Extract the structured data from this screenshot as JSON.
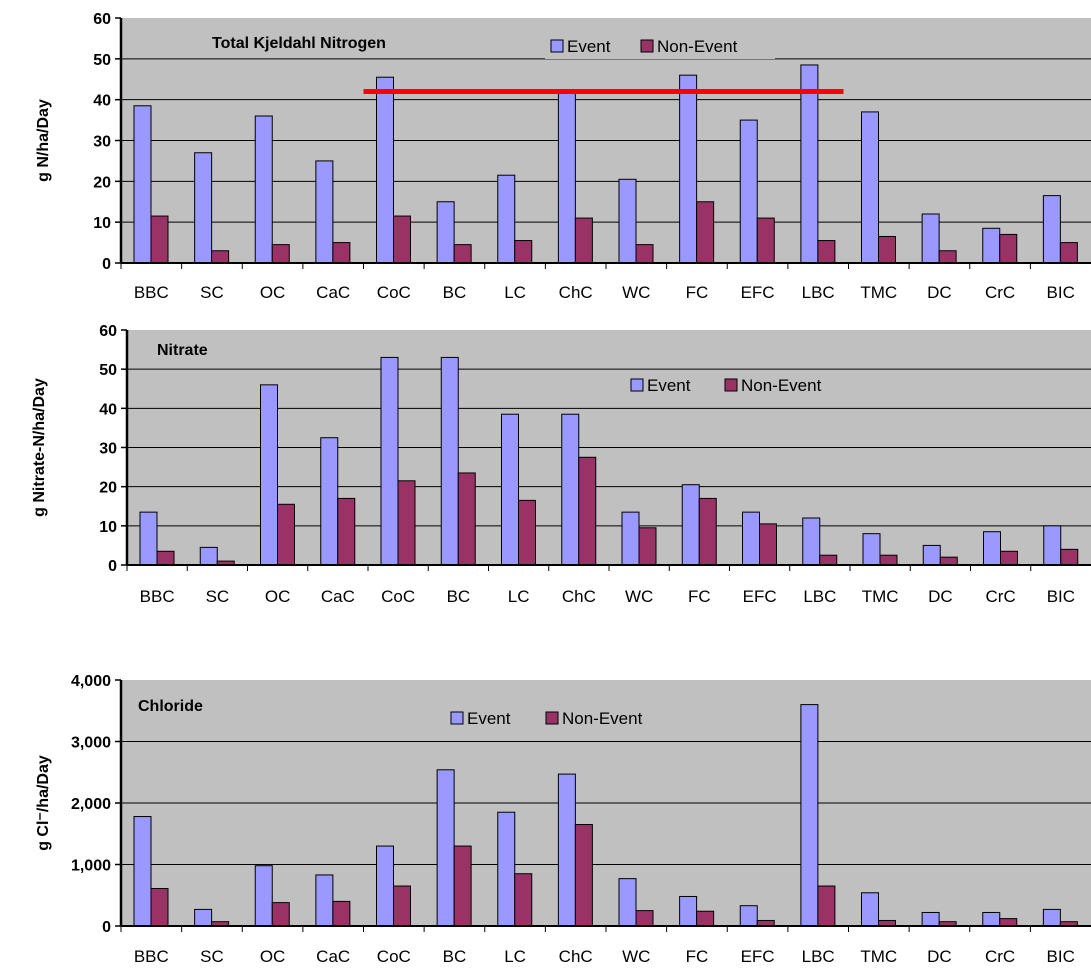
{
  "colors": {
    "plot_bg": "#c0c0c0",
    "event": "#9999ff",
    "non_event": "#993366",
    "grid": "#000000",
    "highlight_line": "#ff0000"
  },
  "legend": {
    "event": "Event",
    "non_event": "Non-Event"
  },
  "chart_data": [
    {
      "type": "bar",
      "title": "Total Kjeldahl Nitrogen",
      "ylabel": "g N/ha/Day",
      "xlabel": "",
      "ylim": [
        0,
        60
      ],
      "yticks": [
        0,
        10,
        20,
        30,
        40,
        50,
        60
      ],
      "ytick_labels": [
        "0",
        "10",
        "20",
        "30",
        "40",
        "50",
        "60"
      ],
      "grid": true,
      "legend_position": "top-center",
      "categories": [
        "BBC",
        "SC",
        "OC",
        "CaC",
        "CoC",
        "BC",
        "LC",
        "ChC",
        "WC",
        "FC",
        "EFC",
        "LBC",
        "TMC",
        "DC",
        "CrC",
        "BIC"
      ],
      "series": [
        {
          "name": "Event",
          "values": [
            38.5,
            27,
            36,
            25,
            45.5,
            15,
            21.5,
            42,
            20.5,
            46,
            35,
            48.5,
            37,
            12,
            8.5,
            16.5
          ]
        },
        {
          "name": "Non-Event",
          "values": [
            11.5,
            3,
            4.5,
            5,
            11.5,
            4.5,
            5.5,
            11,
            4.5,
            15,
            11,
            5.5,
            6.5,
            3,
            7,
            5
          ]
        }
      ],
      "reference_line": {
        "value": 42,
        "from_category": "CoC",
        "to_category": "LBC"
      }
    },
    {
      "type": "bar",
      "title": "Nitrate",
      "ylabel": "g Nitrate-N/ha/Day",
      "xlabel": "",
      "ylim": [
        0,
        60
      ],
      "yticks": [
        0,
        10,
        20,
        30,
        40,
        50,
        60
      ],
      "ytick_labels": [
        "0",
        "10",
        "20",
        "30",
        "40",
        "50",
        "60"
      ],
      "grid": true,
      "legend_position": "top-center",
      "categories": [
        "BBC",
        "SC",
        "OC",
        "CaC",
        "CoC",
        "BC",
        "LC",
        "ChC",
        "WC",
        "FC",
        "EFC",
        "LBC",
        "TMC",
        "DC",
        "CrC",
        "BIC"
      ],
      "series": [
        {
          "name": "Event",
          "values": [
            13.5,
            4.5,
            46,
            32.5,
            53,
            53,
            38.5,
            38.5,
            13.5,
            20.5,
            13.5,
            12,
            8,
            5,
            8.5,
            10
          ]
        },
        {
          "name": "Non-Event",
          "values": [
            3.5,
            1,
            15.5,
            17,
            21.5,
            23.5,
            16.5,
            27.5,
            9.5,
            17,
            10.5,
            2.5,
            2.5,
            2,
            3.5,
            4
          ]
        }
      ]
    },
    {
      "type": "bar",
      "title": "Chloride",
      "ylabel": "g Cl⁻/ha/Day",
      "xlabel": "",
      "ylim": [
        0,
        4000
      ],
      "yticks": [
        0,
        1000,
        2000,
        3000,
        4000
      ],
      "ytick_labels": [
        "0",
        "1,000",
        "2,000",
        "3,000",
        "4,000"
      ],
      "grid": true,
      "legend_position": "top-center",
      "categories": [
        "BBC",
        "SC",
        "OC",
        "CaC",
        "CoC",
        "BC",
        "LC",
        "ChC",
        "WC",
        "FC",
        "EFC",
        "LBC",
        "TMC",
        "DC",
        "CrC",
        "BIC"
      ],
      "series": [
        {
          "name": "Event",
          "values": [
            1780,
            270,
            980,
            830,
            1300,
            2540,
            1850,
            2470,
            770,
            480,
            330,
            3600,
            540,
            220,
            220,
            270
          ]
        },
        {
          "name": "Non-Event",
          "values": [
            610,
            70,
            380,
            400,
            650,
            1300,
            850,
            1650,
            250,
            240,
            90,
            650,
            90,
            70,
            120,
            70
          ]
        }
      ]
    }
  ]
}
